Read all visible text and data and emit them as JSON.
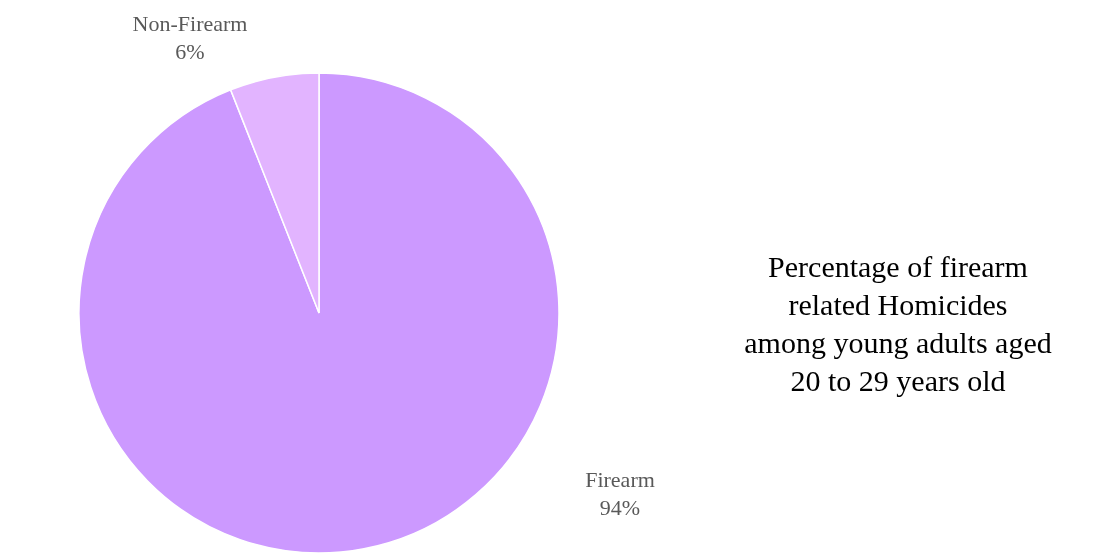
{
  "chart_data": {
    "type": "pie",
    "title": "Percentage of firearm\nrelated Homicides\namong young adults aged\n20 to 29 years old",
    "categories": [
      "Firearm",
      "Non-Firearm"
    ],
    "values": [
      94,
      6
    ],
    "colors": [
      "#cc99ff",
      "#e2b4ff"
    ],
    "value_labels": [
      "94%",
      "6%"
    ]
  }
}
